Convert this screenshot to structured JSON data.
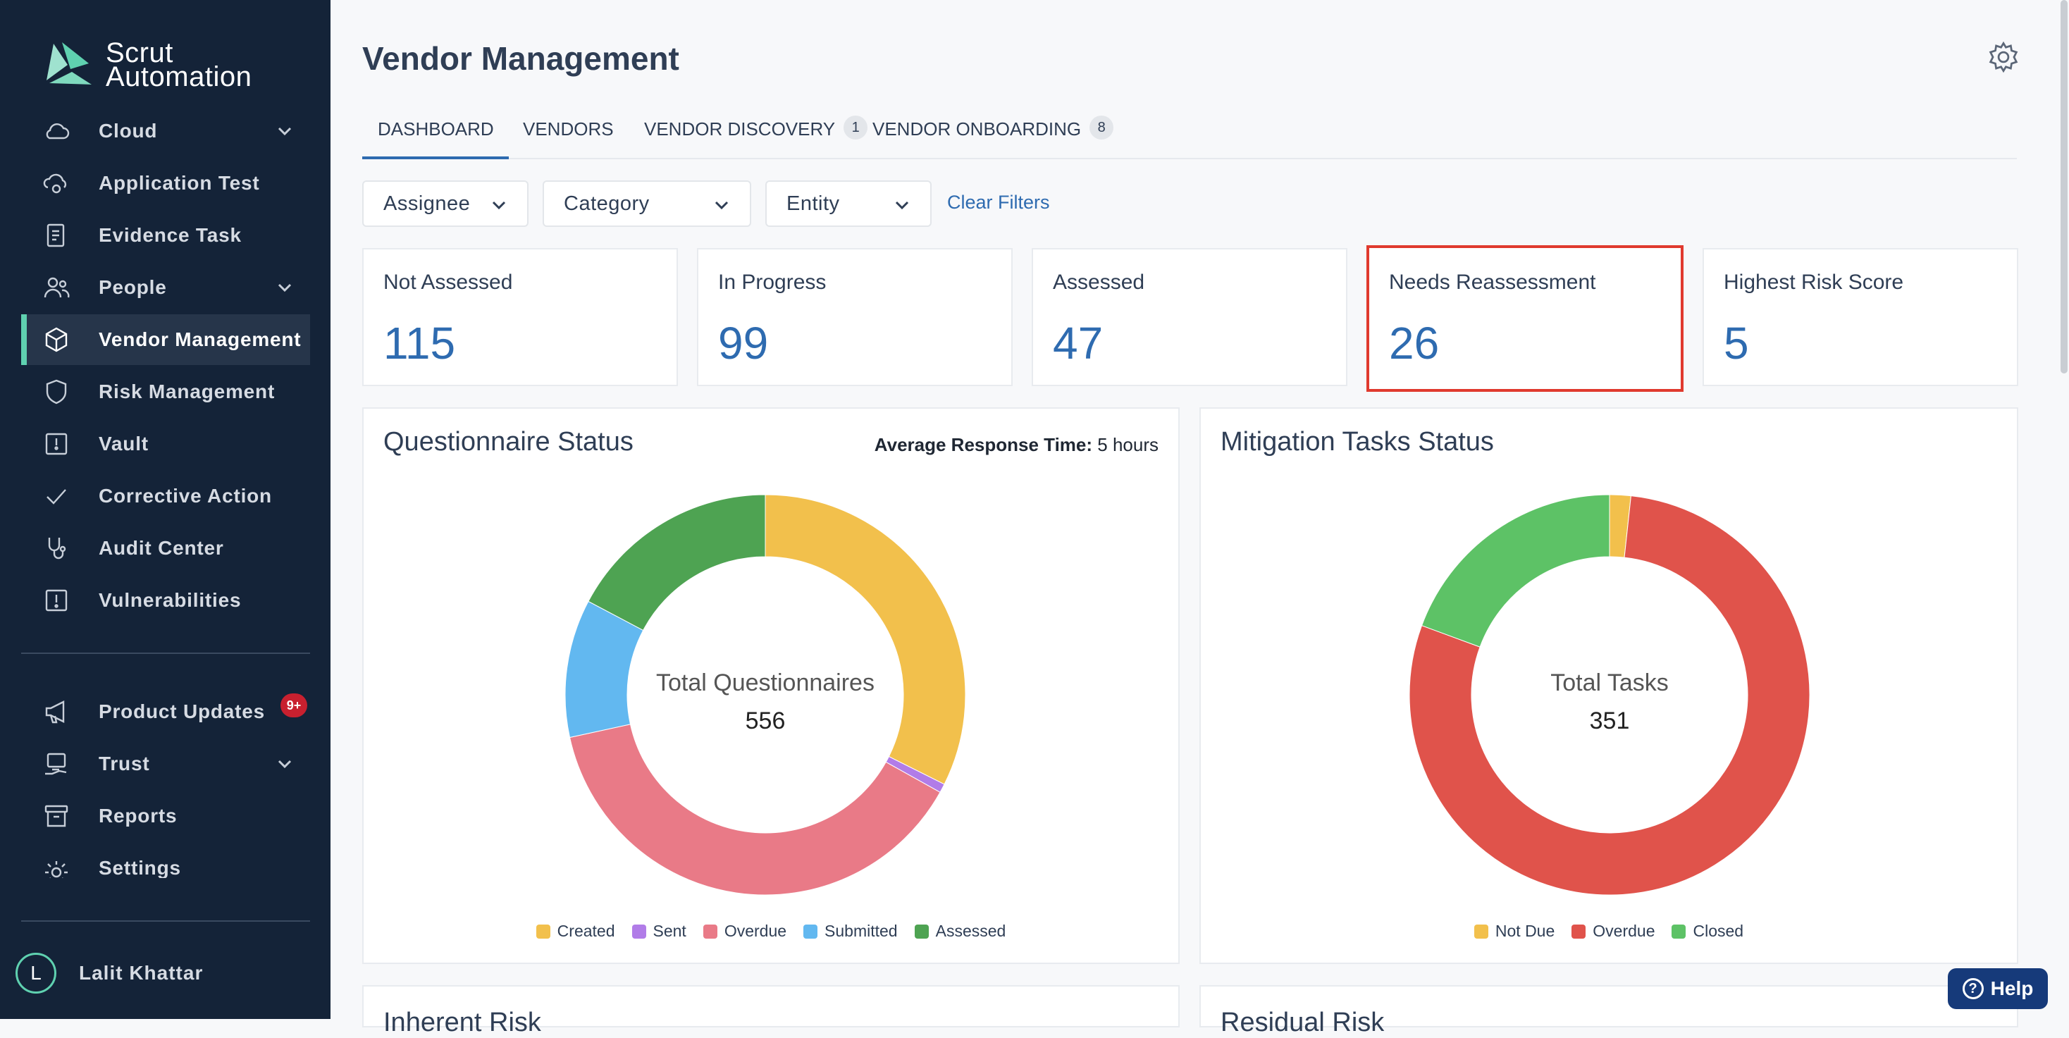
{
  "sidebar": {
    "brand_line1": "Scrut",
    "brand_line2": "Automation",
    "items": [
      {
        "label": "Cloud",
        "icon": "cloud-icon"
      },
      {
        "label": "Application Test",
        "icon": "cloud-gear-icon"
      },
      {
        "label": "Evidence Task",
        "icon": "clipboard-icon"
      },
      {
        "label": "People",
        "icon": "people-icon"
      },
      {
        "label": "Vendor Management",
        "icon": "box-icon"
      },
      {
        "label": "Risk Management",
        "icon": "shield-icon"
      },
      {
        "label": "Vault",
        "icon": "vault-icon"
      },
      {
        "label": "Corrective Action",
        "icon": "check-icon"
      },
      {
        "label": "Audit Center",
        "icon": "stethoscope-icon"
      },
      {
        "label": "Vulnerabilities",
        "icon": "alert-icon"
      },
      {
        "label": "Product Updates",
        "icon": "megaphone-icon",
        "badge": "9+"
      },
      {
        "label": "Trust",
        "icon": "trust-icon"
      },
      {
        "label": "Reports",
        "icon": "archive-icon"
      },
      {
        "label": "Settings",
        "icon": "gear-icon"
      }
    ],
    "user": {
      "initial": "L",
      "name": "Lalit Khattar"
    }
  },
  "header": {
    "title": "Vendor Management"
  },
  "tabs": [
    {
      "label": "DASHBOARD"
    },
    {
      "label": "VENDORS"
    },
    {
      "label": "VENDOR DISCOVERY",
      "count": "1"
    },
    {
      "label": "VENDOR ONBOARDING",
      "count": "8"
    }
  ],
  "filters": {
    "assignee": "Assignee",
    "category": "Category",
    "entity": "Entity",
    "clear": "Clear Filters"
  },
  "stats": [
    {
      "label": "Not Assessed",
      "value": "115"
    },
    {
      "label": "In Progress",
      "value": "99"
    },
    {
      "label": "Assessed",
      "value": "47"
    },
    {
      "label": "Needs Reassessment",
      "value": "26"
    },
    {
      "label": "Highest Risk Score",
      "value": "5"
    }
  ],
  "questionnaire": {
    "title": "Questionnaire Status",
    "avg_label": "Average Response Time:",
    "avg_value": "5 hours",
    "center_label": "Total Questionnaires",
    "center_value": "556",
    "legend": [
      "Created",
      "Sent",
      "Overdue",
      "Submitted",
      "Assessed"
    ]
  },
  "mitigation": {
    "title": "Mitigation Tasks Status",
    "center_label": "Total Tasks",
    "center_value": "351",
    "legend": [
      "Not Due",
      "Overdue",
      "Closed"
    ]
  },
  "bottom_panels": {
    "left": "Inherent Risk",
    "right": "Residual Risk"
  },
  "help": {
    "label": "Help"
  },
  "colors": {
    "sidebar_bg": "#142338",
    "accent": "#2e6bb0",
    "active_marker": "#5fd1b0",
    "highlight_border": "#e03a2e",
    "created": "#f2c04c",
    "sent": "#b17ce8",
    "overdue_q": "#e97a87",
    "submitted": "#62b8f0",
    "assessed": "#4ea352",
    "not_due": "#f2c04c",
    "overdue_t": "#e0534b",
    "closed": "#5dc266"
  },
  "chart_data": [
    {
      "type": "pie",
      "title": "Questionnaire Status",
      "categories": [
        "Created",
        "Sent",
        "Overdue",
        "Submitted",
        "Assessed"
      ],
      "values": [
        180,
        4,
        214,
        62,
        96
      ]
    },
    {
      "type": "pie",
      "title": "Mitigation Tasks Status",
      "categories": [
        "Not Due",
        "Overdue",
        "Closed"
      ],
      "values": [
        6,
        277,
        68
      ]
    }
  ]
}
